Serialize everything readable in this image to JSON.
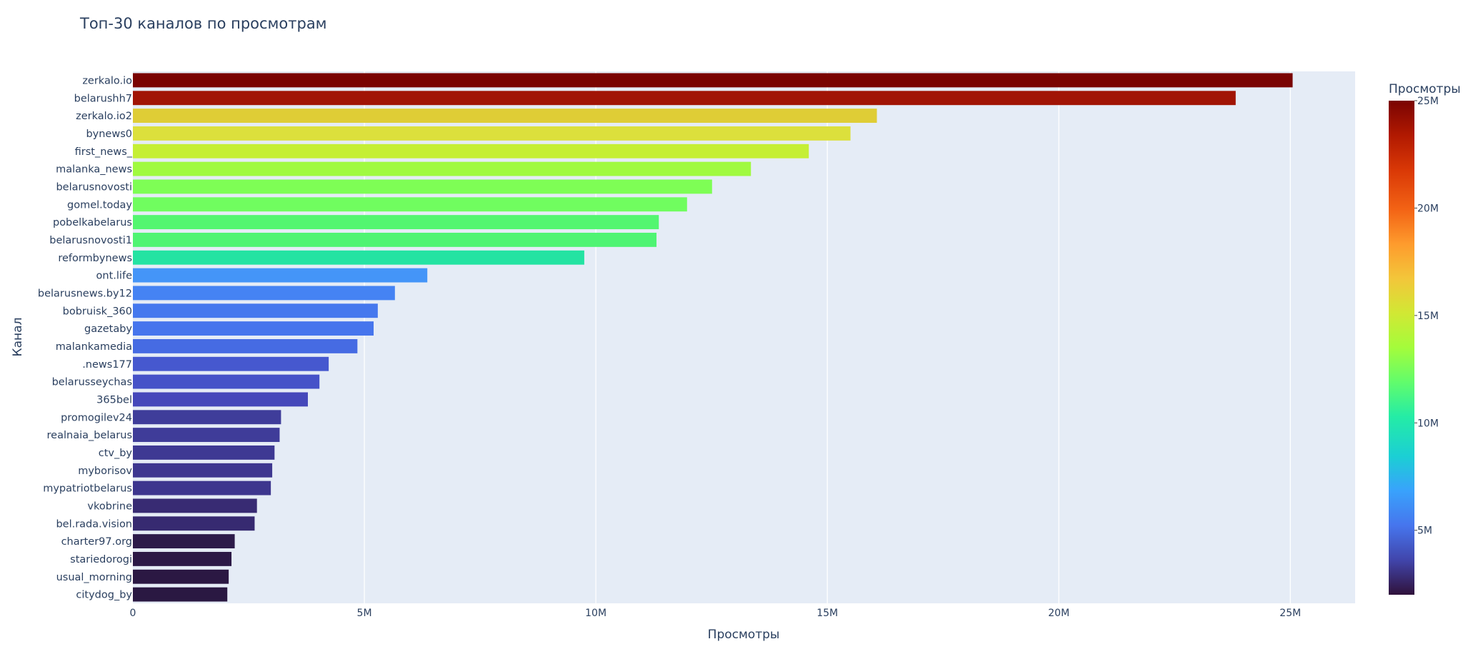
{
  "chart_data": {
    "type": "bar",
    "orientation": "horizontal",
    "title": "Топ-30 каналов по просмотрам",
    "xlabel": "Просмотры",
    "ylabel": "Канал",
    "xlim": [
      0,
      26400000
    ],
    "xticks": [
      {
        "value": 0,
        "label": "0"
      },
      {
        "value": 5000000,
        "label": "5M"
      },
      {
        "value": 10000000,
        "label": "10M"
      },
      {
        "value": 15000000,
        "label": "15M"
      },
      {
        "value": 20000000,
        "label": "20M"
      },
      {
        "value": 25000000,
        "label": "25M"
      }
    ],
    "grid": true,
    "background": "#e5ecf6",
    "colorscale": "Turbo",
    "colorbar": {
      "title": "Просмотры",
      "range": [
        2000000,
        25000000
      ],
      "ticks": [
        {
          "value": 5000000,
          "label": "5M"
        },
        {
          "value": 10000000,
          "label": "10M"
        },
        {
          "value": 15000000,
          "label": "15M"
        },
        {
          "value": 20000000,
          "label": "20M"
        },
        {
          "value": 25000000,
          "label": "25M"
        }
      ]
    },
    "categories": [
      "zerkalo.io",
      "belarushh7",
      "zerkalo.io2",
      "bynews0",
      "first_news_",
      "malanka_news",
      "belarusnovosti",
      "gomel.today",
      "pobelkabelarus",
      "belarusnovosti1",
      "reformbynews",
      "ont.life",
      "belarusnews.by12",
      "bobruisk_360",
      "gazetaby",
      "malankamedia",
      ".news177",
      "belarusseychas",
      "365bel",
      "promogilev24",
      "realnaia_belarus",
      "ctv_by",
      "myborisov",
      "mypatriotbelarus",
      "vkobrine",
      "bel.rada.vision",
      "charter97.org",
      "stariedorogi",
      "usual_morning",
      "citydog_by"
    ],
    "values": [
      25050000,
      23820000,
      16070000,
      15500000,
      14600000,
      13350000,
      12510000,
      11970000,
      11360000,
      11310000,
      9750000,
      6360000,
      5660000,
      5290000,
      5200000,
      4850000,
      4230000,
      4030000,
      3780000,
      3200000,
      3170000,
      3060000,
      3010000,
      2980000,
      2680000,
      2630000,
      2200000,
      2130000,
      2070000,
      2040000
    ],
    "colors": [
      "#7a0403",
      "#a11405",
      "#dfcd36",
      "#dce03c",
      "#c5ef35",
      "#a0fa40",
      "#7efe55",
      "#70fd5f",
      "#53f670",
      "#4ff473",
      "#24e3a2",
      "#4495f8",
      "#4583f3",
      "#4578ee",
      "#4675ed",
      "#466be3",
      "#4658cf",
      "#4652c8",
      "#4548ba",
      "#3f3d9a",
      "#3f3c99",
      "#3e3993",
      "#3e3790",
      "#3d368e",
      "#382b73",
      "#372a71",
      "#2d1b4a",
      "#2c1946",
      "#2b1843",
      "#2a1842"
    ]
  }
}
